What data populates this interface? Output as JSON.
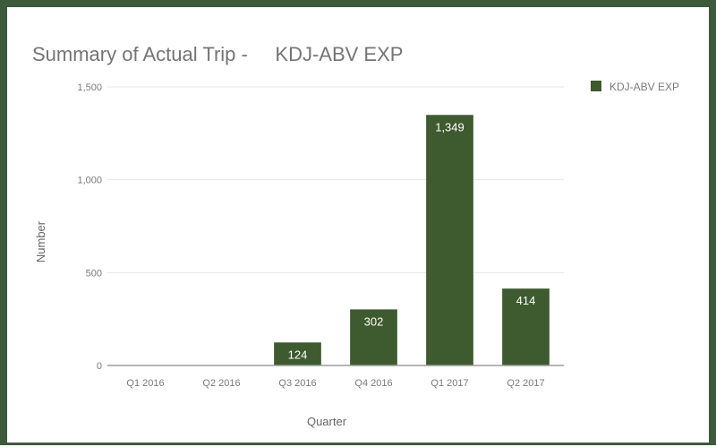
{
  "colors": {
    "border": "#3e5a3d",
    "bar": "#3e5a2f",
    "grid": "#e6e6e6",
    "axis": "#9e9e9e",
    "title": "#757575",
    "tick": "#7a7a7a",
    "bar_label": "#ffffff"
  },
  "chart_data": {
    "type": "bar",
    "title": "Summary of Actual Trip -     KDJ-ABV EXP",
    "xlabel": "Quarter",
    "ylabel": "Number",
    "categories": [
      "Q1 2016",
      "Q2 2016",
      "Q3 2016",
      "Q4 2016",
      "Q1 2017",
      "Q2 2017"
    ],
    "series": [
      {
        "name": "KDJ-ABV EXP",
        "values": [
          0,
          0,
          124,
          302,
          1349,
          414
        ],
        "data_labels": [
          "",
          "",
          "124",
          "302",
          "1,349",
          "414"
        ]
      }
    ],
    "ylim": [
      0,
      1500
    ],
    "yticks": [
      0,
      500,
      1000,
      1500
    ],
    "ytick_labels": [
      "0",
      "500",
      "1,000",
      "1,500"
    ],
    "grid": true,
    "legend_position": "right"
  }
}
